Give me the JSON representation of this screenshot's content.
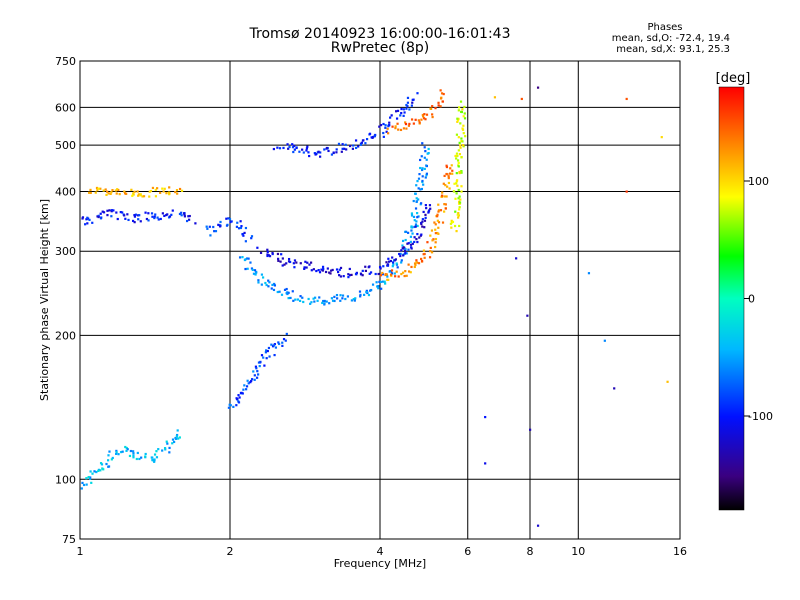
{
  "chart_data": {
    "type": "scatter",
    "title": "Tromsø 20140923 16:00:00-16:01:43",
    "subtitle": "RwPretec (8p)",
    "xlabel": "Frequency [MHz]",
    "ylabel": "Stationary phase Virtual Height [km]",
    "x_scale": "log",
    "y_scale": "log",
    "xlim": [
      1,
      16
    ],
    "ylim": [
      75,
      750
    ],
    "x_ticks": [
      1,
      2,
      4,
      6,
      8,
      10,
      16
    ],
    "y_ticks": [
      75,
      100,
      200,
      300,
      400,
      500,
      600,
      750
    ],
    "grid": true,
    "colorbar": {
      "label": "[deg]",
      "range": [
        -180,
        180
      ],
      "ticks": [
        100,
        0,
        -100
      ]
    },
    "stats": {
      "header": "Phases",
      "line_o": "mean, sd,O:  -72.4, 19.4",
      "line_x": "mean, sd,X:  93.1, 25.3"
    },
    "traces": [
      {
        "name": "",
        "x": [
          2.5,
          3.0,
          3.5,
          4.0,
          4.3,
          4.55,
          4.7
        ],
        "y": [
          500,
          480,
          500,
          530,
          570,
          610,
          640
        ],
        "phase": -100
      },
      {
        "name": "",
        "x": [
          2.1,
          2.3,
          2.6,
          3.0,
          3.5,
          4.0,
          4.4,
          4.7,
          4.85,
          4.95
        ],
        "y": [
          290,
          260,
          245,
          235,
          240,
          255,
          290,
          350,
          420,
          500
        ],
        "phase": -55
      },
      {
        "name": "",
        "x": [
          2.3,
          2.6,
          3.0,
          3.5,
          4.0,
          4.4,
          4.8,
          5.0
        ],
        "y": [
          300,
          285,
          275,
          270,
          275,
          295,
          330,
          380
        ],
        "phase": -115
      },
      {
        "name": "",
        "x": [
          4.0,
          4.5,
          4.9,
          5.2,
          5.4,
          5.5
        ],
        "y": [
          265,
          270,
          290,
          330,
          400,
          460
        ],
        "phase": 130
      },
      {
        "name": "",
        "x": [
          4.2,
          4.6,
          5.0,
          5.2,
          5.3
        ],
        "y": [
          540,
          555,
          580,
          610,
          650
        ],
        "phase": 140
      },
      {
        "name": "",
        "x": [
          5.65,
          5.7,
          5.75,
          5.8,
          5.85
        ],
        "y": [
          330,
          380,
          440,
          520,
          620
        ],
        "phase": 80
      },
      {
        "name": "",
        "x": [
          1.0,
          1.15,
          1.3,
          1.5,
          1.7
        ],
        "y": [
          345,
          360,
          350,
          360,
          350
        ],
        "phase": -100
      },
      {
        "name": "",
        "x": [
          1.05,
          1.3,
          1.6
        ],
        "y": [
          400,
          395,
          405
        ],
        "phase": 110
      },
      {
        "name": "",
        "x": [
          1.8,
          2.0,
          2.2
        ],
        "y": [
          330,
          350,
          320
        ],
        "phase": -90
      },
      {
        "name": "",
        "x": [
          2.0,
          2.2,
          2.4,
          2.6
        ],
        "y": [
          140,
          160,
          185,
          200
        ],
        "phase": -80
      },
      {
        "name": "",
        "x": [
          1.0,
          1.2,
          1.4,
          1.6
        ],
        "y": [
          97,
          115,
          110,
          125
        ],
        "phase": -40
      }
    ],
    "scatter_points": [
      {
        "x": 7.5,
        "y": 290,
        "phase": -120
      },
      {
        "x": 7.9,
        "y": 220,
        "phase": -130
      },
      {
        "x": 8.3,
        "y": 660,
        "phase": -150
      },
      {
        "x": 8.3,
        "y": 80,
        "phase": -120
      },
      {
        "x": 10.5,
        "y": 270,
        "phase": -60
      },
      {
        "x": 11.3,
        "y": 195,
        "phase": -60
      },
      {
        "x": 11.8,
        "y": 155,
        "phase": -130
      },
      {
        "x": 12.5,
        "y": 400,
        "phase": 160
      },
      {
        "x": 14.7,
        "y": 520,
        "phase": 100
      },
      {
        "x": 15.1,
        "y": 160,
        "phase": 110
      },
      {
        "x": 6.5,
        "y": 108,
        "phase": -110
      },
      {
        "x": 6.5,
        "y": 135,
        "phase": -100
      },
      {
        "x": 8.0,
        "y": 127,
        "phase": -130
      },
      {
        "x": 6.8,
        "y": 630,
        "phase": 110
      },
      {
        "x": 7.7,
        "y": 625,
        "phase": 150
      },
      {
        "x": 12.5,
        "y": 625,
        "phase": 150
      }
    ]
  }
}
